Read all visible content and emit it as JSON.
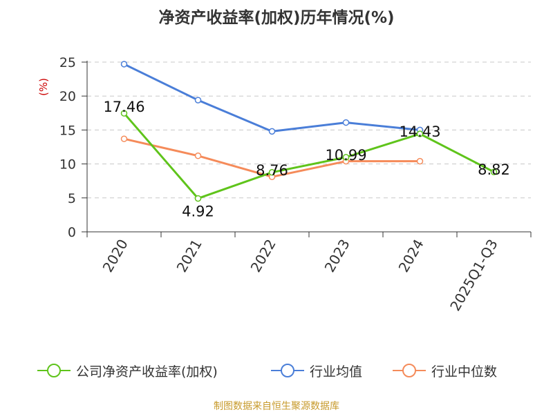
{
  "title": "净资产收益率(加权)历年情况(%)",
  "source": "制图数据来自恒生聚源数据库",
  "colors": {
    "company": "#5fc41b",
    "avg": "#4a7ed8",
    "median": "#f58b5a",
    "grid": "#c8c8c8",
    "axis": "#333333"
  },
  "chart_data": {
    "type": "line",
    "title": "净资产收益率(加权)历年情况(%)",
    "ylabel": "(%)",
    "xlabel": "",
    "ylim": [
      0,
      25
    ],
    "yticks": [
      0,
      5,
      10,
      15,
      20,
      25
    ],
    "categories": [
      "2020",
      "2021",
      "2022",
      "2023",
      "2024",
      "2025Q1-Q3"
    ],
    "series": [
      {
        "key": "company",
        "name": "公司净资产收益率(加权)",
        "values": [
          17.46,
          4.92,
          8.76,
          10.99,
          14.43,
          8.82
        ],
        "labels": [
          "17.46",
          "4.92",
          "8.76",
          "10.99",
          "14.43",
          "8.82"
        ]
      },
      {
        "key": "avg",
        "name": "行业均值",
        "values": [
          24.7,
          19.4,
          14.8,
          16.1,
          15.0,
          null
        ]
      },
      {
        "key": "median",
        "name": "行业中位数",
        "values": [
          13.7,
          11.2,
          8.1,
          10.4,
          10.4,
          null
        ]
      }
    ],
    "legend_position": "bottom"
  }
}
